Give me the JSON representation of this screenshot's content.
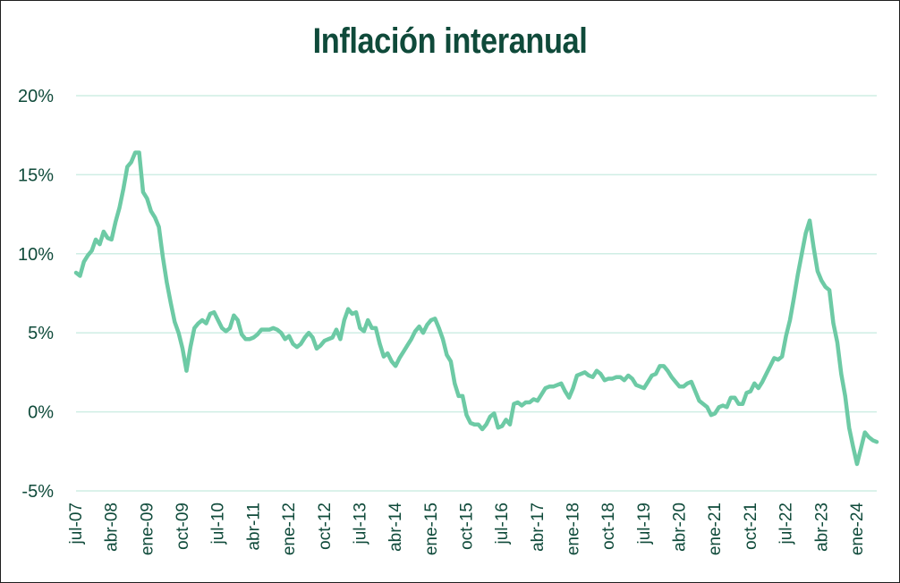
{
  "chart_data": {
    "type": "line",
    "title": "Inflación interanual",
    "xlabel": "",
    "ylabel": "",
    "ylim": [
      -5,
      20
    ],
    "y_ticks": [
      -5,
      0,
      5,
      10,
      15,
      20
    ],
    "y_tick_labels": [
      "-5%",
      "0%",
      "5%",
      "10%",
      "15%",
      "20%"
    ],
    "x_tick_labels": [
      "jul-07",
      "abr-08",
      "ene-09",
      "oct-09",
      "jul-10",
      "abr-11",
      "ene-12",
      "oct-12",
      "jul-13",
      "abr-14",
      "ene-15",
      "oct-15",
      "jul-16",
      "abr-17",
      "ene-18",
      "oct-18",
      "jul-19",
      "abr-20",
      "ene-21",
      "oct-21",
      "jul-22",
      "abr-23",
      "ene-24"
    ],
    "grid": true,
    "line_color": "#6dcaa5",
    "series": [
      {
        "name": "Inflación interanual",
        "start": "jul-07",
        "frequency": "monthly",
        "values": [
          8.8,
          8.6,
          9.5,
          9.9,
          10.2,
          10.9,
          10.6,
          11.4,
          11.0,
          10.9,
          12.0,
          12.9,
          14.1,
          15.5,
          15.8,
          16.4,
          16.4,
          13.9,
          13.5,
          12.7,
          12.3,
          11.7,
          9.8,
          8.2,
          6.9,
          5.7,
          5.0,
          4.0,
          2.6,
          4.1,
          5.3,
          5.6,
          5.8,
          5.6,
          6.2,
          6.3,
          5.8,
          5.3,
          5.1,
          5.3,
          6.1,
          5.8,
          4.9,
          4.6,
          4.6,
          4.7,
          4.9,
          5.2,
          5.2,
          5.2,
          5.3,
          5.2,
          5.0,
          4.6,
          4.8,
          4.3,
          4.1,
          4.3,
          4.7,
          5.0,
          4.7,
          4.0,
          4.2,
          4.5,
          4.6,
          4.7,
          5.2,
          4.6,
          5.8,
          6.5,
          6.2,
          6.3,
          5.3,
          5.1,
          5.8,
          5.3,
          5.3,
          4.3,
          3.5,
          3.7,
          3.2,
          2.9,
          3.4,
          3.8,
          4.2,
          4.6,
          5.1,
          5.4,
          5.0,
          5.5,
          5.8,
          5.9,
          5.3,
          4.6,
          3.6,
          3.2,
          1.8,
          1.0,
          1.0,
          -0.2,
          -0.7,
          -0.8,
          -0.8,
          -1.1,
          -0.8,
          -0.3,
          -0.1,
          -1.0,
          -0.9,
          -0.5,
          -0.8,
          0.5,
          0.6,
          0.4,
          0.6,
          0.6,
          0.8,
          0.7,
          1.1,
          1.5,
          1.6,
          1.6,
          1.7,
          1.8,
          1.3,
          0.9,
          1.5,
          2.3,
          2.4,
          2.5,
          2.3,
          2.2,
          2.6,
          2.4,
          2.0,
          2.1,
          2.1,
          2.2,
          2.2,
          2.0,
          2.3,
          2.1,
          1.7,
          1.6,
          1.5,
          1.9,
          2.3,
          2.4,
          2.9,
          2.9,
          2.6,
          2.2,
          1.9,
          1.6,
          1.6,
          1.8,
          1.9,
          1.3,
          0.7,
          0.5,
          0.3,
          -0.2,
          -0.1,
          0.3,
          0.4,
          0.3,
          0.9,
          0.9,
          0.5,
          0.5,
          1.2,
          1.3,
          1.8,
          1.5,
          1.9,
          2.4,
          2.9,
          3.4,
          3.3,
          3.5,
          4.8,
          5.8,
          7.2,
          8.7,
          10.0,
          11.3,
          12.1,
          10.4,
          8.9,
          8.3,
          7.9,
          7.7,
          5.6,
          4.4,
          2.4,
          1.0,
          -1.0,
          -2.2,
          -3.3,
          -2.3,
          -1.3,
          -1.6,
          -1.8,
          -1.9
        ]
      }
    ]
  }
}
